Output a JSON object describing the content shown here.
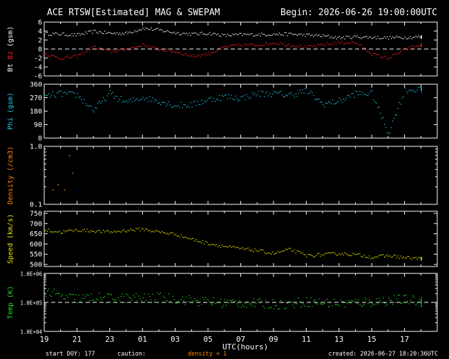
{
  "header": {
    "title": "ACE RTSW[Estimated] MAG & SWEPAM",
    "begin": "Begin: 2026-06-26 19:00:00UTC"
  },
  "footer": {
    "start_doy": "start DOY: 177",
    "caution": "caution:",
    "density_note": "density < 1",
    "created": "created: 2026-06-27 18:20:36UTC"
  },
  "colors": {
    "bt": "#ffffff",
    "bz": "#ff2020",
    "phi": "#22c8e8",
    "density": "#ff8c00",
    "speed": "#e6e600",
    "temp": "#20e020",
    "frame": "#ffffff",
    "background": "#000000"
  },
  "chart_data": [
    {
      "type": "scatter",
      "panel": "mag",
      "ylabel_parts": [
        "Bt",
        "Bz",
        "(gsm)"
      ],
      "ylim": [
        -6,
        6
      ],
      "yticks": [
        "6",
        "4",
        "2",
        "0",
        "-2",
        "-4",
        "-6"
      ],
      "reference_line": 0,
      "series": [
        {
          "name": "Bt",
          "color": "#ffffff",
          "points": [
            [
              0,
              3.5
            ],
            [
              1,
              3.4
            ],
            [
              2,
              3.2
            ],
            [
              3,
              4.0
            ],
            [
              4,
              3.6
            ],
            [
              5,
              3.6
            ],
            [
              6,
              4.7
            ],
            [
              7,
              4.3
            ],
            [
              8,
              3.7
            ],
            [
              9,
              3.4
            ],
            [
              10,
              3.6
            ],
            [
              11,
              3.1
            ],
            [
              12,
              3.3
            ],
            [
              13,
              3.3
            ],
            [
              14,
              3.4
            ],
            [
              15,
              3.4
            ],
            [
              16,
              3.2
            ],
            [
              17,
              3.0
            ],
            [
              18,
              2.6
            ],
            [
              19,
              2.8
            ],
            [
              20,
              2.7
            ],
            [
              21,
              2.6
            ],
            [
              22,
              2.7
            ],
            [
              23,
              2.8
            ]
          ]
        },
        {
          "name": "Bz",
          "color": "#ff2020",
          "points": [
            [
              0,
              -1.0
            ],
            [
              1,
              -2.0
            ],
            [
              2,
              -1.5
            ],
            [
              3,
              0.5
            ],
            [
              4,
              -0.5
            ],
            [
              5,
              0.0
            ],
            [
              6,
              1.0
            ],
            [
              7,
              0.0
            ],
            [
              8,
              -0.5
            ],
            [
              9,
              -1.5
            ],
            [
              10,
              -1.0
            ],
            [
              11,
              0.5
            ],
            [
              12,
              1.0
            ],
            [
              13,
              1.0
            ],
            [
              14,
              1.5
            ],
            [
              15,
              1.0
            ],
            [
              16,
              0.5
            ],
            [
              17,
              1.0
            ],
            [
              18,
              1.5
            ],
            [
              19,
              1.5
            ],
            [
              20,
              -1.0
            ],
            [
              21,
              -2.0
            ],
            [
              22,
              0.0
            ],
            [
              23,
              1.0
            ]
          ]
        }
      ]
    },
    {
      "type": "scatter",
      "panel": "phi",
      "ylabel_parts": [
        "Phi",
        "(gsm)"
      ],
      "ylim": [
        0,
        360
      ],
      "yticks": [
        "360",
        "270",
        "180",
        "90",
        "0"
      ],
      "series": [
        {
          "name": "Phi",
          "color": "#22c8e8",
          "points": [
            [
              0,
              280
            ],
            [
              1,
              300
            ],
            [
              2,
              290
            ],
            [
              3,
              190
            ],
            [
              4,
              300
            ],
            [
              5,
              240
            ],
            [
              6,
              275
            ],
            [
              7,
              250
            ],
            [
              8,
              220
            ],
            [
              9,
              225
            ],
            [
              10,
              260
            ],
            [
              11,
              280
            ],
            [
              12,
              270
            ],
            [
              13,
              300
            ],
            [
              14,
              300
            ],
            [
              15,
              290
            ],
            [
              16,
              320
            ],
            [
              17,
              230
            ],
            [
              18,
              250
            ],
            [
              19,
              300
            ],
            [
              20,
              300
            ],
            [
              21,
              35
            ],
            [
              22,
              320
            ],
            [
              23,
              330
            ]
          ]
        }
      ]
    },
    {
      "type": "scatter",
      "panel": "density",
      "ylabel_parts": [
        "Density",
        "(/cm3)"
      ],
      "ylim": [
        0.1,
        1.0
      ],
      "scale": "log",
      "yticks": [
        "1.0",
        "0.1"
      ],
      "series": [
        {
          "name": "Density",
          "color": "#ff8c00",
          "points": [
            [
              0.5,
              0.18
            ],
            [
              0.8,
              0.22
            ],
            [
              1.2,
              0.18
            ],
            [
              1.5,
              0.7
            ],
            [
              1.7,
              0.35
            ]
          ]
        }
      ]
    },
    {
      "type": "scatter",
      "panel": "speed",
      "ylabel_parts": [
        "Speed",
        "(km/s)"
      ],
      "ylim": [
        490,
        760
      ],
      "yticks": [
        "750",
        "700",
        "650",
        "600",
        "550",
        "500"
      ],
      "series": [
        {
          "name": "Speed",
          "color": "#e6e600",
          "points": [
            [
              0,
              670
            ],
            [
              1,
              660
            ],
            [
              2,
              670
            ],
            [
              3,
              665
            ],
            [
              4,
              660
            ],
            [
              5,
              668
            ],
            [
              6,
              675
            ],
            [
              7,
              660
            ],
            [
              8,
              650
            ],
            [
              9,
              625
            ],
            [
              10,
              605
            ],
            [
              11,
              590
            ],
            [
              12,
              578
            ],
            [
              13,
              570
            ],
            [
              14,
              555
            ],
            [
              15,
              575
            ],
            [
              16,
              545
            ],
            [
              17,
              550
            ],
            [
              18,
              555
            ],
            [
              19,
              550
            ],
            [
              20,
              538
            ],
            [
              21,
              545
            ],
            [
              22,
              535
            ],
            [
              23,
              530
            ]
          ]
        }
      ]
    },
    {
      "type": "scatter",
      "panel": "temp",
      "ylabel_parts": [
        "Temp",
        "(K)"
      ],
      "ylim": [
        10000,
        1000000
      ],
      "scale": "log",
      "yticks": [
        "1.0E+06",
        "1.0E+05",
        "1.0E+04"
      ],
      "reference_line": 100000,
      "series": [
        {
          "name": "Temp",
          "color": "#20e020",
          "points": [
            [
              0,
              250000
            ],
            [
              1,
              160000
            ],
            [
              2,
              140000
            ],
            [
              3,
              150000
            ],
            [
              4,
              140000
            ],
            [
              5,
              150000
            ],
            [
              6,
              140000
            ],
            [
              7,
              150000
            ],
            [
              8,
              140000
            ],
            [
              9,
              120000
            ],
            [
              10,
              110000
            ],
            [
              11,
              100000
            ],
            [
              12,
              100000
            ],
            [
              13,
              95000
            ],
            [
              14,
              90000
            ],
            [
              15,
              90000
            ],
            [
              16,
              110000
            ],
            [
              17,
              100000
            ],
            [
              18,
              95000
            ],
            [
              19,
              100000
            ],
            [
              20,
              110000
            ],
            [
              21,
              120000
            ],
            [
              22,
              130000
            ],
            [
              23,
              110000
            ]
          ]
        }
      ]
    }
  ],
  "x_axis": {
    "label": "UTC(hours)",
    "ticks": [
      "19",
      "21",
      "23",
      "01",
      "03",
      "05",
      "07",
      "09",
      "11",
      "13",
      "15",
      "17"
    ]
  }
}
